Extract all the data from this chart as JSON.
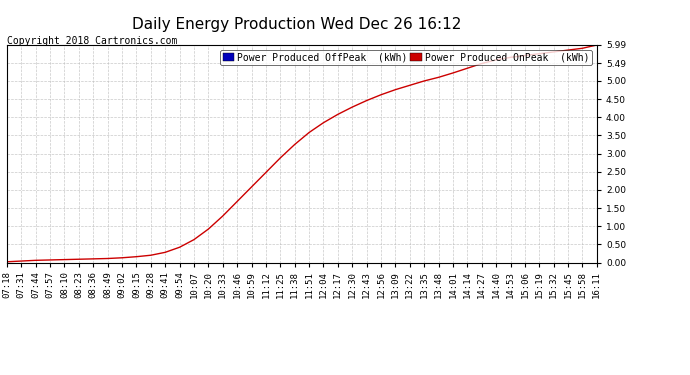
{
  "title": "Daily Energy Production Wed Dec 26 16:12",
  "copyright": "Copyright 2018 Cartronics.com",
  "legend_offpeak_label": "Power Produced OffPeak  (kWh)",
  "legend_onpeak_label": "Power Produced OnPeak  (kWh)",
  "legend_offpeak_color": "#0000bb",
  "legend_onpeak_color": "#cc0000",
  "line_color": "#cc0000",
  "background_color": "#ffffff",
  "grid_color": "#bbbbbb",
  "ylim": [
    0.0,
    5.99
  ],
  "yticks": [
    0.0,
    0.5,
    1.0,
    1.5,
    2.0,
    2.5,
    3.0,
    3.5,
    4.0,
    4.5,
    5.0,
    5.49,
    5.99
  ],
  "x_labels": [
    "07:18",
    "07:31",
    "07:44",
    "07:57",
    "08:10",
    "08:23",
    "08:36",
    "08:49",
    "09:02",
    "09:15",
    "09:28",
    "09:41",
    "09:54",
    "10:07",
    "10:20",
    "10:33",
    "10:46",
    "10:59",
    "11:12",
    "11:25",
    "11:38",
    "11:51",
    "12:04",
    "12:17",
    "12:30",
    "12:43",
    "12:56",
    "13:09",
    "13:22",
    "13:35",
    "13:48",
    "14:01",
    "14:14",
    "14:27",
    "14:40",
    "14:53",
    "15:06",
    "15:19",
    "15:32",
    "15:45",
    "15:58",
    "16:11"
  ],
  "y_values": [
    0.02,
    0.04,
    0.06,
    0.07,
    0.08,
    0.09,
    0.1,
    0.11,
    0.13,
    0.16,
    0.2,
    0.28,
    0.42,
    0.63,
    0.92,
    1.28,
    1.68,
    2.08,
    2.48,
    2.88,
    3.25,
    3.58,
    3.85,
    4.08,
    4.28,
    4.46,
    4.62,
    4.76,
    4.88,
    5.0,
    5.1,
    5.22,
    5.35,
    5.48,
    5.58,
    5.65,
    5.7,
    5.75,
    5.8,
    5.85,
    5.9,
    5.99
  ],
  "title_fontsize": 11,
  "copyright_fontsize": 7,
  "tick_fontsize": 6.5,
  "legend_fontsize": 7
}
